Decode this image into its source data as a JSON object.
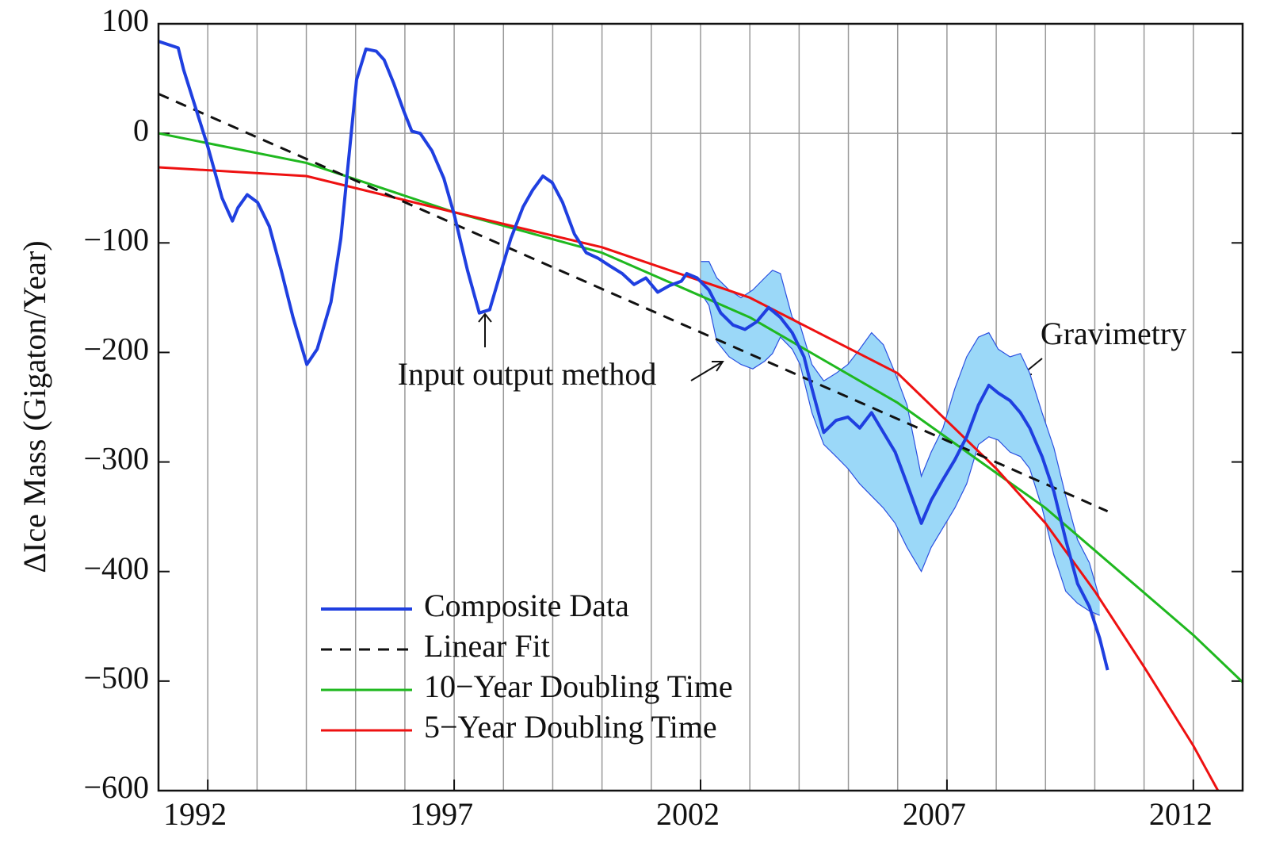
{
  "chart_data": {
    "type": "line",
    "y_label": "ΔIce Mass (Gigaton/Year)",
    "xlim": [
      1991,
      2013
    ],
    "ylim": [
      -600,
      100
    ],
    "xticks": [
      1992,
      1997,
      2002,
      2007,
      2012
    ],
    "yticks": [
      100,
      0,
      {
        "value": -100,
        "label": "−100"
      },
      {
        "value": -200,
        "label": "−200"
      },
      {
        "value": -300,
        "label": "−300"
      },
      {
        "value": -400,
        "label": "−400"
      },
      {
        "value": -500,
        "label": "−500"
      },
      {
        "value": -600,
        "label": "−600"
      }
    ],
    "xgrid": [
      1992,
      1993,
      1994,
      1995,
      1996,
      1997,
      1998,
      1999,
      2000,
      2001,
      2002,
      2003,
      2004,
      2005,
      2006,
      2007,
      2008,
      2009,
      2010,
      2011,
      2012
    ],
    "band": {
      "color": "#9bd8f8",
      "edge_color": "#2a4fe0",
      "x": [
        2002.01,
        2002.17,
        2002.33,
        2002.58,
        2002.82,
        2003.06,
        2003.3,
        2003.46,
        2003.62,
        2003.86,
        2004.02,
        2004.26,
        2004.5,
        2004.75,
        2004.99,
        2005.23,
        2005.47,
        2005.71,
        2005.95,
        2006.19,
        2006.48,
        2006.68,
        2006.92,
        2007.16,
        2007.4,
        2007.64,
        2007.85,
        2008.04,
        2008.28,
        2008.49,
        2008.68,
        2008.93,
        2009.17,
        2009.41,
        2009.65,
        2009.89,
        2010.1
      ],
      "upper": [
        -117,
        -117,
        -132,
        -143,
        -150,
        -143,
        -132,
        -125,
        -128,
        -168,
        -175,
        -211,
        -226,
        -219,
        -211,
        -197,
        -182,
        -193,
        -219,
        -248,
        -313,
        -291,
        -269,
        -233,
        -204,
        -186,
        -182,
        -197,
        -204,
        -201,
        -219,
        -255,
        -287,
        -331,
        -371,
        -392,
        -425
      ],
      "lower": [
        -146,
        -157,
        -190,
        -204,
        -211,
        -215,
        -208,
        -201,
        -186,
        -197,
        -211,
        -255,
        -284,
        -295,
        -306,
        -320,
        -331,
        -342,
        -356,
        -378,
        -400,
        -378,
        -360,
        -342,
        -320,
        -284,
        -277,
        -280,
        -291,
        -295,
        -306,
        -342,
        -385,
        -418,
        -429,
        -436,
        -440
      ]
    },
    "series": [
      {
        "name": "Composite Data",
        "color": "#1f3fe0",
        "width": 4,
        "x": [
          1991.0,
          1991.4,
          1991.51,
          1991.72,
          1992.0,
          1992.29,
          1992.5,
          1992.61,
          1992.8,
          1993.01,
          1993.25,
          1993.49,
          1993.73,
          1994.01,
          1994.22,
          1994.5,
          1994.7,
          1994.86,
          1995.02,
          1995.21,
          1995.42,
          1995.58,
          1995.77,
          1995.98,
          1996.14,
          1996.31,
          1996.55,
          1996.79,
          1997.0,
          1997.27,
          1997.51,
          1997.72,
          1997.91,
          1998.15,
          1998.4,
          1998.59,
          1998.8,
          1998.99,
          1999.2,
          1999.44,
          1999.68,
          1999.92,
          2000.16,
          2000.41,
          2000.65,
          2000.89,
          2001.13,
          2001.37,
          2001.61,
          2001.72,
          2001.93,
          2002.17,
          2002.41,
          2002.66,
          2002.9,
          2003.14,
          2003.38,
          2003.62,
          2003.86,
          2004.1,
          2004.26,
          2004.5,
          2004.75,
          2004.99,
          2005.23,
          2005.47,
          2005.71,
          2005.95,
          2006.19,
          2006.48,
          2006.68,
          2006.92,
          2007.16,
          2007.4,
          2007.64,
          2007.85,
          2008.04,
          2008.28,
          2008.49,
          2008.68,
          2008.93,
          2009.17,
          2009.41,
          2009.65,
          2009.89,
          2010.1,
          2010.26
        ],
        "values": [
          84,
          78,
          58,
          28,
          -12,
          -59,
          -80,
          -68,
          -56,
          -63,
          -85,
          -125,
          -168,
          -211,
          -197,
          -154,
          -96,
          -23,
          49,
          77,
          75,
          67,
          46,
          20,
          2,
          0,
          -16,
          -41,
          -74,
          -125,
          -164,
          -161,
          -132,
          -96,
          -67,
          -52,
          -39,
          -45,
          -63,
          -92,
          -109,
          -114,
          -121,
          -128,
          -138,
          -132,
          -145,
          -139,
          -135,
          -128,
          -132,
          -143,
          -164,
          -175,
          -179,
          -172,
          -159,
          -168,
          -182,
          -204,
          -233,
          -273,
          -262,
          -259,
          -269,
          -255,
          -273,
          -291,
          -320,
          -356,
          -335,
          -316,
          -298,
          -277,
          -248,
          -230,
          -237,
          -244,
          -255,
          -269,
          -295,
          -327,
          -371,
          -411,
          -432,
          -461,
          -490
        ]
      },
      {
        "name": "Linear Fit",
        "color": "#111111",
        "width": 3,
        "dash": true,
        "x": [
          1991.0,
          2010.26
        ],
        "values": [
          36,
          -345
        ]
      },
      {
        "name": "10−Year Doubling Time",
        "color": "#1fb81f",
        "width": 3,
        "x": [
          1991,
          1994,
          1997,
          2000,
          2003,
          2006,
          2009,
          2012,
          2013
        ],
        "values": [
          0,
          -27,
          -72,
          -109,
          -168,
          -246,
          -342,
          -458,
          -501
        ]
      },
      {
        "name": "5−Year Doubling Time",
        "color": "#ee1111",
        "width": 3,
        "x": [
          1991,
          1994,
          1997,
          2000,
          2003,
          2006,
          2008,
          2009,
          2010,
          2011,
          2012,
          2012.5
        ],
        "values": [
          -31,
          -39,
          -72,
          -104,
          -150,
          -219,
          -306,
          -356,
          -418,
          -487,
          -559,
          -600
        ]
      }
    ],
    "annotations": [
      "Input output method",
      "Gravimetry"
    ]
  }
}
